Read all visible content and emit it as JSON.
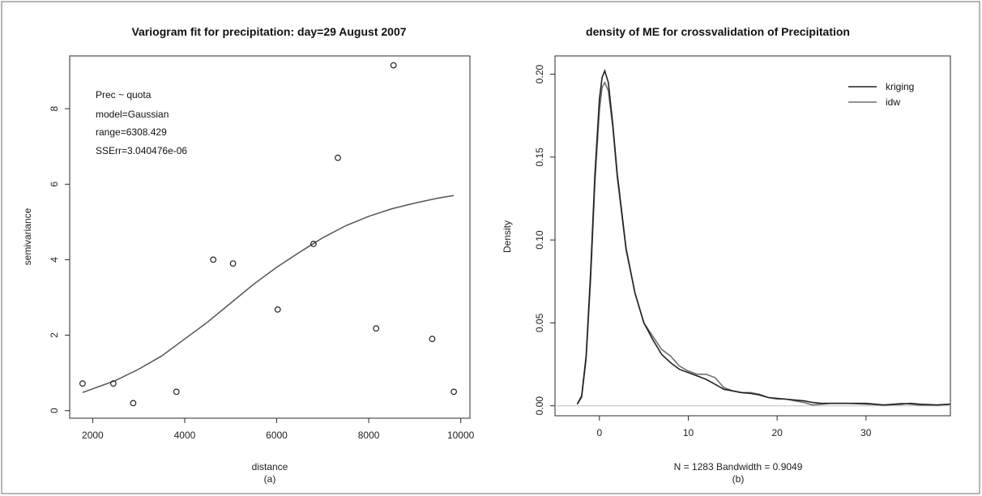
{
  "chart_data": [
    {
      "type": "scatter",
      "title": "Variogram fit for precipitation: day=29 August 2007",
      "xlabel": "distance",
      "ylabel": "semivariance",
      "caption": "(a)",
      "xlim": [
        1500,
        10200
      ],
      "ylim": [
        -0.2,
        9.4
      ],
      "x_ticks": [
        2000,
        4000,
        6000,
        8000,
        10000
      ],
      "y_ticks": [
        0,
        2,
        4,
        6,
        8
      ],
      "grid": false,
      "annotations": [
        "Prec ~ quota",
        "model=Gaussian",
        "range=6308.429",
        "SSErr=3.040476e-06"
      ],
      "series": [
        {
          "type": "scatter",
          "x": [
            1780,
            2450,
            2880,
            3820,
            4620,
            5050,
            6020,
            6800,
            7330,
            8160,
            8540,
            9380,
            9850
          ],
          "y": [
            0.72,
            0.72,
            0.2,
            0.5,
            4.0,
            3.9,
            2.68,
            4.42,
            6.7,
            2.18,
            9.15,
            1.9,
            0.5
          ]
        },
        {
          "type": "line",
          "x": [
            1780,
            2500,
            3000,
            3500,
            4000,
            4500,
            5000,
            5500,
            6000,
            6500,
            7000,
            7500,
            8000,
            8500,
            9000,
            9500,
            9850
          ],
          "y": [
            0.48,
            0.8,
            1.1,
            1.45,
            1.9,
            2.35,
            2.85,
            3.35,
            3.8,
            4.2,
            4.58,
            4.9,
            5.15,
            5.35,
            5.5,
            5.63,
            5.7
          ]
        }
      ]
    },
    {
      "type": "line",
      "title": "density of ME for crossvalidation of Precipitation",
      "xlabel": "N = 1283   Bandwidth = 0.9049",
      "ylabel": "Density",
      "caption": "(b)",
      "xlim": [
        -5,
        39.5
      ],
      "ylim": [
        -0.006,
        0.211
      ],
      "x_ticks": [
        0,
        10,
        20,
        30
      ],
      "y_ticks": [
        0.0,
        0.05,
        0.1,
        0.15,
        0.2
      ],
      "y_tick_labels": [
        "0.00",
        "0.05",
        "0.10",
        "0.15",
        "0.20"
      ],
      "grid": false,
      "legend_position": "top-right",
      "series": [
        {
          "name": "kriging",
          "color": "#222222",
          "x": [
            -2.5,
            -2,
            -1.5,
            -1,
            -0.5,
            0,
            0.3,
            0.6,
            1,
            1.5,
            2,
            3,
            4,
            5,
            6,
            7,
            8,
            9,
            10,
            11,
            12,
            13,
            14,
            15,
            16,
            17,
            18,
            19,
            20,
            21,
            22,
            23,
            24,
            25,
            26,
            28,
            30,
            32,
            34,
            35,
            36,
            38,
            39.5
          ],
          "y": [
            0.001,
            0.006,
            0.03,
            0.08,
            0.14,
            0.185,
            0.198,
            0.202,
            0.195,
            0.17,
            0.14,
            0.095,
            0.068,
            0.05,
            0.04,
            0.031,
            0.026,
            0.022,
            0.02,
            0.018,
            0.016,
            0.013,
            0.01,
            0.009,
            0.008,
            0.0075,
            0.0065,
            0.005,
            0.0045,
            0.004,
            0.0035,
            0.003,
            0.002,
            0.0015,
            0.0015,
            0.0015,
            0.0015,
            0.0005,
            0.001,
            0.0015,
            0.001,
            0.0005,
            0.001
          ]
        },
        {
          "name": "idw",
          "color": "#6f6f6f",
          "x": [
            -2.5,
            -2,
            -1.5,
            -1,
            -0.5,
            0,
            0.3,
            0.6,
            1,
            1.5,
            2,
            3,
            4,
            5,
            6,
            7,
            8,
            9,
            10,
            11,
            12,
            13,
            14,
            15,
            16,
            17,
            18,
            19,
            20,
            21,
            22,
            23,
            24,
            25,
            26,
            28,
            30,
            32,
            34,
            35,
            36,
            38,
            39.5
          ],
          "y": [
            0.001,
            0.005,
            0.028,
            0.075,
            0.135,
            0.178,
            0.192,
            0.195,
            0.19,
            0.168,
            0.138,
            0.094,
            0.068,
            0.05,
            0.042,
            0.034,
            0.03,
            0.024,
            0.021,
            0.019,
            0.019,
            0.017,
            0.011,
            0.009,
            0.008,
            0.008,
            0.007,
            0.005,
            0.004,
            0.004,
            0.003,
            0.002,
            0.0005,
            0.001,
            0.0015,
            0.0015,
            0.001,
            0.0005,
            0.0015,
            0.001,
            0.0005,
            0.0005,
            0.001
          ]
        }
      ]
    }
  ]
}
